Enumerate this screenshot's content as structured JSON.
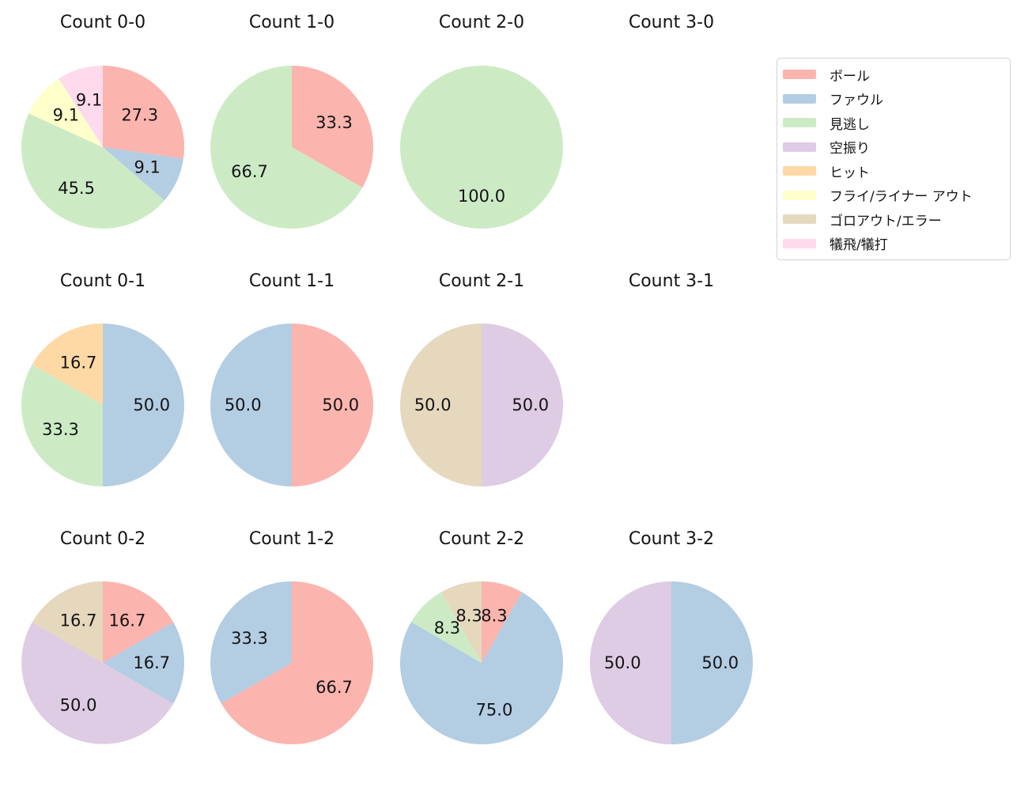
{
  "figure": {
    "background": "#ffffff",
    "text_color": "#141414"
  },
  "legend": {
    "position": "upper right",
    "items": [
      {
        "label": "ボール",
        "color": "#fbb4ae"
      },
      {
        "label": "ファウル",
        "color": "#b3cde3"
      },
      {
        "label": "見逃し",
        "color": "#ccebc5"
      },
      {
        "label": "空振り",
        "color": "#decbe4"
      },
      {
        "label": "ヒット",
        "color": "#fed9a6"
      },
      {
        "label": "フライ/ライナー アウト",
        "color": "#ffffcc"
      },
      {
        "label": "ゴロアウト/エラー",
        "color": "#e5d8bd"
      },
      {
        "label": "犠飛/犠打",
        "color": "#fddaec"
      }
    ]
  },
  "chart_data": [
    {
      "type": "pie",
      "title": "Count 0-0",
      "grid": {
        "row": 0,
        "col": 0
      },
      "start_angle": 90,
      "direction": "clockwise",
      "label_radius": 0.6,
      "slices": [
        {
          "category": "ボール",
          "value": 27.3,
          "label": "27.3"
        },
        {
          "category": "ファウル",
          "value": 9.1,
          "label": "9.1"
        },
        {
          "category": "見逃し",
          "value": 45.5,
          "label": "45.5"
        },
        {
          "category": "フライ/ライナー アウト",
          "value": 9.1,
          "label": "9.1"
        },
        {
          "category": "犠飛/犠打",
          "value": 9.1,
          "label": "9.1"
        }
      ]
    },
    {
      "type": "pie",
      "title": "Count 1-0",
      "grid": {
        "row": 0,
        "col": 1
      },
      "start_angle": 90,
      "direction": "clockwise",
      "label_radius": 0.6,
      "slices": [
        {
          "category": "ボール",
          "value": 33.3,
          "label": "33.3"
        },
        {
          "category": "見逃し",
          "value": 66.7,
          "label": "66.7"
        }
      ]
    },
    {
      "type": "pie",
      "title": "Count 2-0",
      "grid": {
        "row": 0,
        "col": 2
      },
      "start_angle": 90,
      "direction": "clockwise",
      "label_radius": 0.6,
      "slices": [
        {
          "category": "見逃し",
          "value": 100.0,
          "label": "100.0"
        }
      ]
    },
    {
      "type": "pie",
      "title": "Count 3-0",
      "grid": {
        "row": 0,
        "col": 3
      },
      "start_angle": 90,
      "direction": "clockwise",
      "label_radius": 0.6,
      "slices": []
    },
    {
      "type": "pie",
      "title": "Count 0-1",
      "grid": {
        "row": 1,
        "col": 0
      },
      "start_angle": 90,
      "direction": "clockwise",
      "label_radius": 0.6,
      "slices": [
        {
          "category": "ファウル",
          "value": 50.0,
          "label": "50.0"
        },
        {
          "category": "見逃し",
          "value": 33.3,
          "label": "33.3"
        },
        {
          "category": "ヒット",
          "value": 16.7,
          "label": "16.7"
        }
      ]
    },
    {
      "type": "pie",
      "title": "Count 1-1",
      "grid": {
        "row": 1,
        "col": 1
      },
      "start_angle": 90,
      "direction": "clockwise",
      "label_radius": 0.6,
      "slices": [
        {
          "category": "ボール",
          "value": 50.0,
          "label": "50.0"
        },
        {
          "category": "ファウル",
          "value": 50.0,
          "label": "50.0"
        }
      ]
    },
    {
      "type": "pie",
      "title": "Count 2-1",
      "grid": {
        "row": 1,
        "col": 2
      },
      "start_angle": 90,
      "direction": "clockwise",
      "label_radius": 0.6,
      "slices": [
        {
          "category": "空振り",
          "value": 50.0,
          "label": "50.0"
        },
        {
          "category": "ゴロアウト/エラー",
          "value": 50.0,
          "label": "50.0"
        }
      ]
    },
    {
      "type": "pie",
      "title": "Count 3-1",
      "grid": {
        "row": 1,
        "col": 3
      },
      "start_angle": 90,
      "direction": "clockwise",
      "label_radius": 0.6,
      "slices": []
    },
    {
      "type": "pie",
      "title": "Count 0-2",
      "grid": {
        "row": 2,
        "col": 0
      },
      "start_angle": 90,
      "direction": "clockwise",
      "label_radius": 0.6,
      "slices": [
        {
          "category": "ボール",
          "value": 16.7,
          "label": "16.7"
        },
        {
          "category": "ファウル",
          "value": 16.7,
          "label": "16.7"
        },
        {
          "category": "空振り",
          "value": 50.0,
          "label": "50.0"
        },
        {
          "category": "ゴロアウト/エラー",
          "value": 16.7,
          "label": "16.7"
        }
      ]
    },
    {
      "type": "pie",
      "title": "Count 1-2",
      "grid": {
        "row": 2,
        "col": 1
      },
      "start_angle": 90,
      "direction": "clockwise",
      "label_radius": 0.6,
      "slices": [
        {
          "category": "ボール",
          "value": 66.7,
          "label": "66.7"
        },
        {
          "category": "ファウル",
          "value": 33.3,
          "label": "33.3"
        }
      ]
    },
    {
      "type": "pie",
      "title": "Count 2-2",
      "grid": {
        "row": 2,
        "col": 2
      },
      "start_angle": 90,
      "direction": "clockwise",
      "label_radius": 0.6,
      "slices": [
        {
          "category": "ボール",
          "value": 8.3,
          "label": "8.3"
        },
        {
          "category": "ファウル",
          "value": 75.0,
          "label": "75.0"
        },
        {
          "category": "見逃し",
          "value": 8.3,
          "label": "8.3"
        },
        {
          "category": "ゴロアウト/エラー",
          "value": 8.3,
          "label": "8.3"
        }
      ]
    },
    {
      "type": "pie",
      "title": "Count 3-2",
      "grid": {
        "row": 2,
        "col": 3
      },
      "start_angle": 90,
      "direction": "clockwise",
      "label_radius": 0.6,
      "slices": [
        {
          "category": "ファウル",
          "value": 50.0,
          "label": "50.0"
        },
        {
          "category": "空振り",
          "value": 50.0,
          "label": "50.0"
        }
      ]
    }
  ]
}
